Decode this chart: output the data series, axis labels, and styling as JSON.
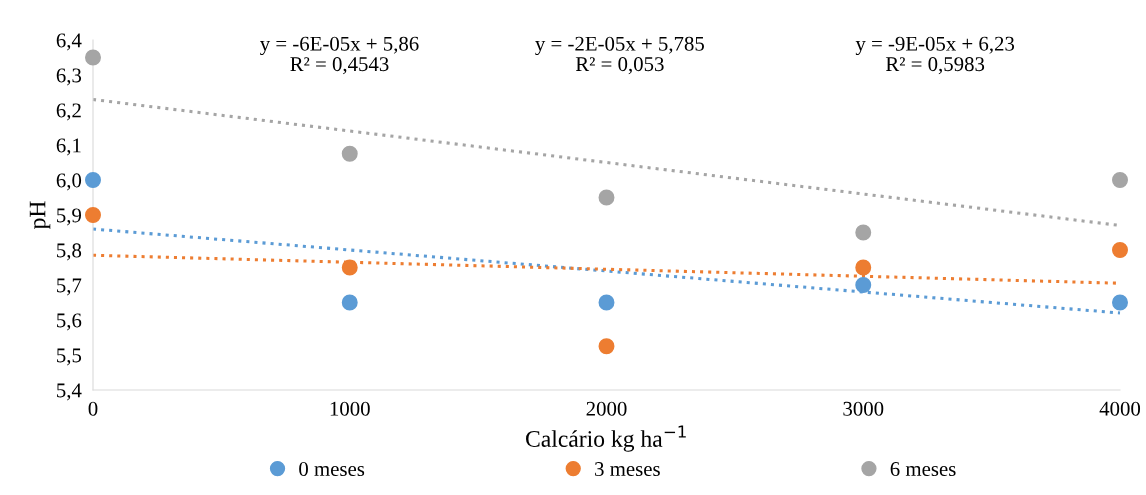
{
  "chart_data": {
    "type": "scatter",
    "xlabel": "Calcário kg ha$^{−1}$",
    "ylabel": "pH",
    "x": [
      0,
      1000,
      2000,
      3000,
      4000
    ],
    "series": [
      {
        "name": "0 meses",
        "color": "#5b9bd5",
        "values": [
          6.0,
          5.65,
          5.65,
          5.7,
          5.65
        ],
        "marker": "circle"
      },
      {
        "name": "3 meses",
        "color": "#ed7d31",
        "values": [
          5.9,
          5.75,
          5.525,
          5.75,
          5.8
        ],
        "marker": "circle"
      },
      {
        "name": "6 meses",
        "color": "#a5a5a5",
        "values": [
          6.35,
          6.075,
          5.95,
          5.85,
          6.0
        ],
        "marker": "circle"
      },
      {
        "type": "line",
        "color": "#5b9bd5",
        "values": [
          5.86,
          5.8,
          5.74,
          5.68,
          5.62
        ],
        "line_style": "dotted",
        "marker": "none"
      },
      {
        "type": "line",
        "color": "#ed7d31",
        "values": [
          5.785,
          5.765,
          5.745,
          5.725,
          5.705
        ],
        "line_style": "dotted",
        "marker": "none"
      },
      {
        "type": "line",
        "color": "#a5a5a5",
        "values": [
          6.23,
          6.14,
          6.05,
          5.96,
          5.87
        ],
        "line_style": "dotted",
        "marker": "none"
      }
    ],
    "annotations": [
      "y = -6E-05x + 5,86\nR² = 0,4543",
      "y = -2E-05x + 5,785\nR² = 0,053",
      "y = -9E-05x + 6,23\nR² = 0,5983"
    ],
    "xlim": [
      0,
      4000
    ],
    "xticks": [
      0,
      1000,
      2000,
      3000,
      4000
    ],
    "ylim": [
      5.4,
      6.4
    ],
    "yticks": [
      {
        "value": 5.4,
        "label": "5,4"
      },
      {
        "value": 5.5,
        "label": "5,5"
      },
      {
        "value": 5.6,
        "label": "5,6"
      },
      {
        "value": 5.7,
        "label": "5,7"
      },
      {
        "value": 5.8,
        "label": "5,8"
      },
      {
        "value": 5.9,
        "label": "5,9"
      },
      {
        "value": 6.0,
        "label": "6,0"
      },
      {
        "value": 6.1,
        "label": "6,1"
      },
      {
        "value": 6.2,
        "label": "6,2"
      },
      {
        "value": 6.3,
        "label": "6,3"
      },
      {
        "value": 6.4,
        "label": "6,4"
      }
    ],
    "grid": false,
    "legend": "bottom"
  }
}
